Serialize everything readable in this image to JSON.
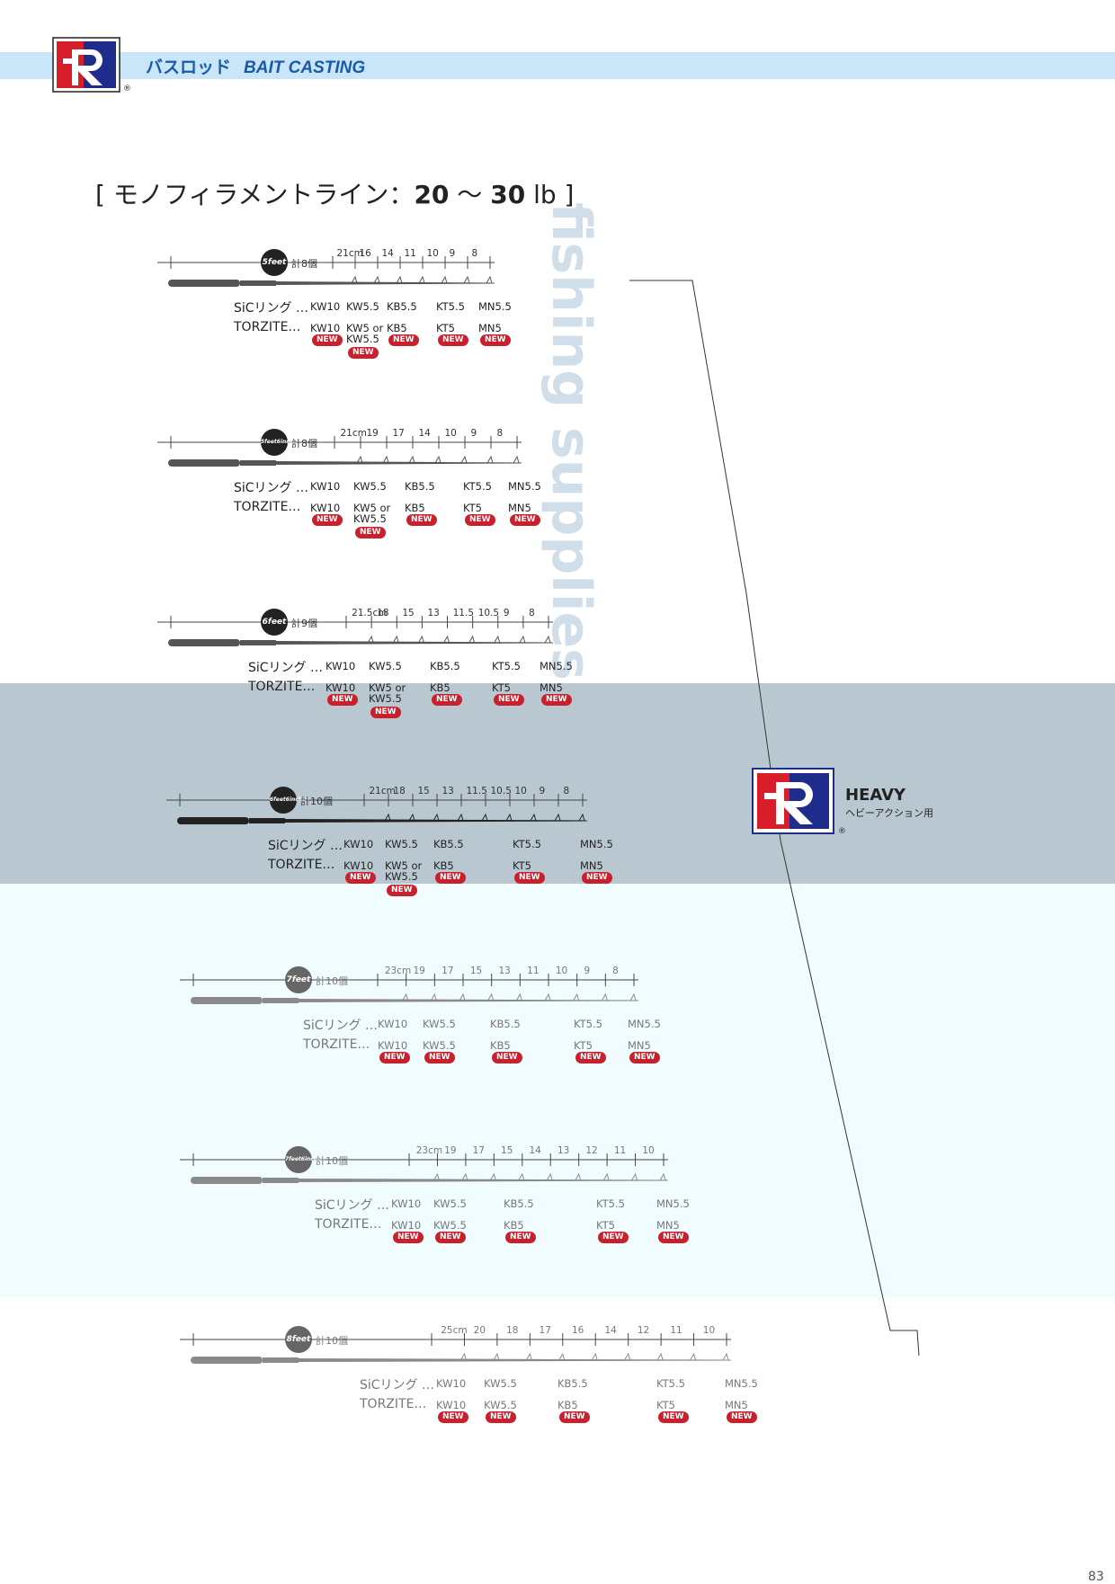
{
  "header": {
    "title_jp": "バスロッド",
    "title_en": "BAIT CASTING",
    "registered": "®"
  },
  "line_title": {
    "prefix": "[ モノフィラメントライン：",
    "range_from": "20",
    "tilde": " ～ ",
    "range_to": "30",
    "unit": " lb ]"
  },
  "heavy": {
    "title": "HEAVY",
    "subtitle": "ヘビーアクション用",
    "registered": "®"
  },
  "page_number": "83",
  "watermark": "fishing supplies",
  "rods": [
    {
      "length_label": "5feet",
      "count": "計8個",
      "segments": [
        "21cm",
        "16",
        "14",
        "11",
        "10",
        "9",
        "8"
      ],
      "sic_label": "SiCリング …",
      "sic": [
        "KW10",
        "KW5.5",
        "KB5.5",
        "KT5.5",
        "MN5.5"
      ],
      "torzite_label": "TORZITE…",
      "torzite": [
        "KW10",
        "KW5 or",
        "KB5",
        "KT5",
        "MN5"
      ],
      "torzite_extra": "KW5.5",
      "new": "NEW"
    },
    {
      "length_label": "5feet6inches",
      "count": "計8個",
      "segments": [
        "21cm",
        "19",
        "17",
        "14",
        "10",
        "9",
        "8"
      ],
      "sic_label": "SiCリング …",
      "sic": [
        "KW10",
        "KW5.5",
        "KB5.5",
        "KT5.5",
        "MN5.5"
      ],
      "torzite_label": "TORZITE…",
      "torzite": [
        "KW10",
        "KW5 or",
        "KB5",
        "KT5",
        "MN5"
      ],
      "torzite_extra": "KW5.5",
      "new": "NEW"
    },
    {
      "length_label": "6feet",
      "count": "計9個",
      "segments": [
        "21.5cm",
        "18",
        "15",
        "13",
        "11.5",
        "10.5",
        "9",
        "8"
      ],
      "sic_label": "SiCリング …",
      "sic": [
        "KW10",
        "KW5.5",
        "KB5.5",
        "KT5.5",
        "MN5.5"
      ],
      "torzite_label": "TORZITE…",
      "torzite": [
        "KW10",
        "KW5 or",
        "KB5",
        "KT5",
        "MN5"
      ],
      "torzite_extra": "KW5.5",
      "new": "NEW"
    },
    {
      "length_label": "6feet6inches",
      "count": "計10個",
      "segments": [
        "21cm",
        "18",
        "15",
        "13",
        "11.5",
        "10.5",
        "10",
        "9",
        "8"
      ],
      "sic_label": "SiCリング …",
      "sic": [
        "KW10",
        "KW5.5",
        "KB5.5",
        "KT5.5",
        "MN5.5"
      ],
      "torzite_label": "TORZITE…",
      "torzite": [
        "KW10",
        "KW5 or",
        "KB5",
        "KT5",
        "MN5"
      ],
      "torzite_extra": "KW5.5",
      "new": "NEW"
    },
    {
      "length_label": "7feet",
      "count": "計10個",
      "segments": [
        "23cm",
        "19",
        "17",
        "15",
        "13",
        "11",
        "10",
        "9",
        "8"
      ],
      "sic_label": "SiCリング …",
      "sic": [
        "KW10",
        "KW5.5",
        "KB5.5",
        "KT5.5",
        "MN5.5"
      ],
      "torzite_label": "TORZITE…",
      "torzite": [
        "KW10",
        "KW5.5",
        "KB5",
        "KT5",
        "MN5"
      ],
      "torzite_extra": "",
      "new": "NEW"
    },
    {
      "length_label": "7feet6inches",
      "count": "計10個",
      "segments": [
        "23cm",
        "19",
        "17",
        "15",
        "14",
        "13",
        "12",
        "11",
        "10"
      ],
      "sic_label": "SiCリング …",
      "sic": [
        "KW10",
        "KW5.5",
        "KB5.5",
        "KT5.5",
        "MN5.5"
      ],
      "torzite_label": "TORZITE…",
      "torzite": [
        "KW10",
        "KW5.5",
        "KB5",
        "KT5",
        "MN5"
      ],
      "torzite_extra": "",
      "new": "NEW"
    },
    {
      "length_label": "8feet",
      "count": "計10個",
      "segments": [
        "25cm",
        "20",
        "18",
        "17",
        "16",
        "14",
        "12",
        "11",
        "10"
      ],
      "sic_label": "SiCリング …",
      "sic": [
        "KW10",
        "KW5.5",
        "KB5.5",
        "KT5.5",
        "MN5.5"
      ],
      "torzite_label": "TORZITE…",
      "torzite": [
        "KW10",
        "KW5.5",
        "KB5",
        "KT5",
        "MN5"
      ],
      "torzite_extra": "",
      "new": "NEW"
    }
  ]
}
